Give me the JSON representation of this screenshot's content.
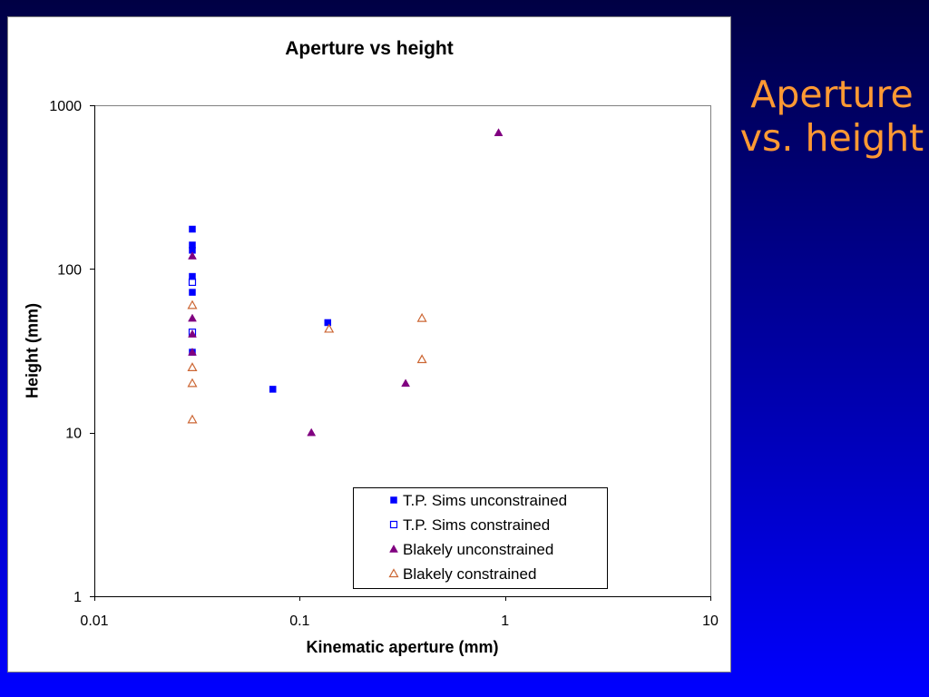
{
  "slide": {
    "title_lines": [
      "Aperture",
      "vs. height"
    ],
    "title_color": "#FF9933"
  },
  "chart_data": {
    "type": "scatter",
    "title": "Aperture vs height",
    "xlabel": "Kinematic aperture (mm)",
    "ylabel": "Height (mm)",
    "xscale": "log",
    "yscale": "log",
    "xlim": [
      0.01,
      10
    ],
    "ylim": [
      1,
      1000
    ],
    "x_ticks": [
      0.01,
      0.1,
      1,
      10
    ],
    "x_tick_labels": [
      "0.01",
      "0.1",
      "1",
      "10"
    ],
    "y_ticks": [
      1,
      10,
      100,
      1000
    ],
    "y_tick_labels": [
      "1",
      "10",
      "100",
      "1000"
    ],
    "grid": false,
    "legend_position": "bottom-right",
    "series": [
      {
        "name": "T.P. Sims unconstrained",
        "marker": "square",
        "filled": true,
        "color": "#0000FF",
        "points": [
          [
            0.03,
            175
          ],
          [
            0.03,
            140
          ],
          [
            0.03,
            130
          ],
          [
            0.03,
            90
          ],
          [
            0.03,
            72
          ],
          [
            0.03,
            31
          ],
          [
            0.074,
            18.4
          ],
          [
            0.137,
            47
          ]
        ]
      },
      {
        "name": "T.P. Sims constrained",
        "marker": "square",
        "filled": false,
        "color": "#0000FF",
        "points": [
          [
            0.03,
            83
          ],
          [
            0.03,
            41
          ]
        ]
      },
      {
        "name": "Blakely unconstrained",
        "marker": "triangle",
        "filled": true,
        "color": "#800080",
        "points": [
          [
            0.03,
            120
          ],
          [
            0.03,
            50
          ],
          [
            0.03,
            40
          ],
          [
            0.03,
            31
          ],
          [
            0.114,
            10
          ],
          [
            0.328,
            20
          ],
          [
            0.93,
            680
          ]
        ]
      },
      {
        "name": "Blakely constrained",
        "marker": "triangle",
        "filled": false,
        "color": "#CC6633",
        "points": [
          [
            0.03,
            60
          ],
          [
            0.03,
            25
          ],
          [
            0.03,
            20
          ],
          [
            0.03,
            12
          ],
          [
            0.139,
            43
          ],
          [
            0.394,
            50
          ],
          [
            0.394,
            28
          ]
        ]
      }
    ]
  }
}
